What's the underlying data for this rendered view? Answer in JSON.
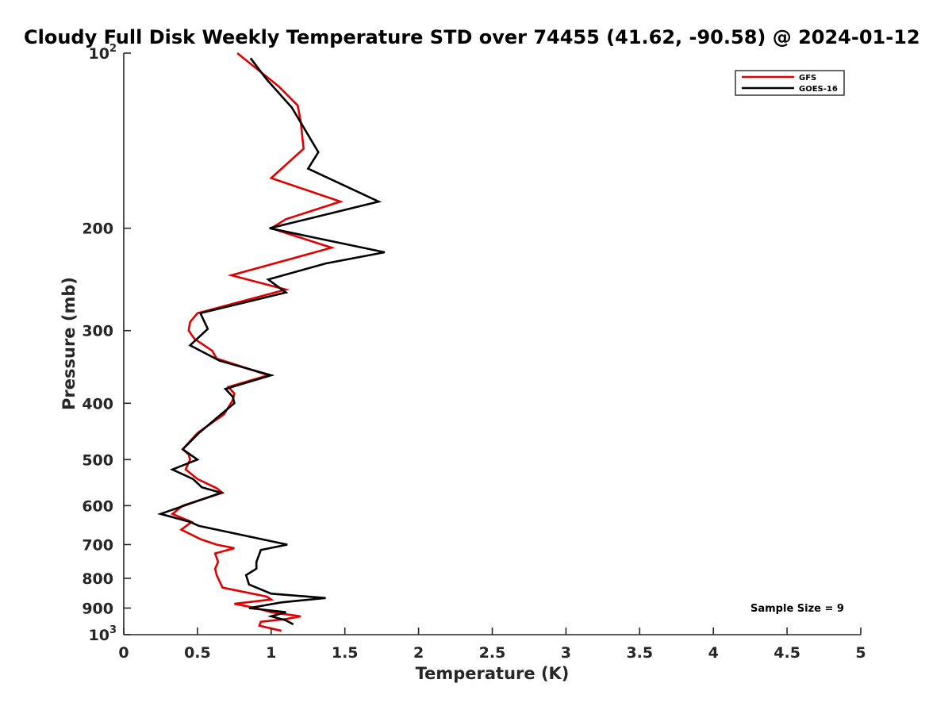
{
  "chart_data": {
    "type": "line",
    "title": "Cloudy Full Disk Weekly Temperature STD over 74455 (41.62, -90.58) @ 2024-01-12",
    "xlabel": "Temperature (K)",
    "ylabel": "Pressure (mb)",
    "xlim": [
      0,
      5
    ],
    "ylim": [
      100,
      1000
    ],
    "y_scale": "log",
    "y_reversed": true,
    "x_ticks": [
      {
        "value": 0,
        "label": "0"
      },
      {
        "value": 0.5,
        "label": "0.5"
      },
      {
        "value": 1,
        "label": "1"
      },
      {
        "value": 1.5,
        "label": "1.5"
      },
      {
        "value": 2,
        "label": "2"
      },
      {
        "value": 2.5,
        "label": "2.5"
      },
      {
        "value": 3,
        "label": "3"
      },
      {
        "value": 3.5,
        "label": "3.5"
      },
      {
        "value": 4,
        "label": "4"
      },
      {
        "value": 4.5,
        "label": "4.5"
      },
      {
        "value": 5,
        "label": "5"
      }
    ],
    "y_ticks": [
      {
        "value": 100,
        "base": "10",
        "exp": "2"
      },
      {
        "value": 200,
        "base": "200",
        "exp": ""
      },
      {
        "value": 300,
        "base": "300",
        "exp": ""
      },
      {
        "value": 400,
        "base": "400",
        "exp": ""
      },
      {
        "value": 500,
        "base": "500",
        "exp": ""
      },
      {
        "value": 600,
        "base": "600",
        "exp": ""
      },
      {
        "value": 700,
        "base": "700",
        "exp": ""
      },
      {
        "value": 800,
        "base": "800",
        "exp": ""
      },
      {
        "value": 900,
        "base": "900",
        "exp": ""
      },
      {
        "value": 1000,
        "base": "10",
        "exp": "3"
      }
    ],
    "grid": false,
    "legend_position": "top-right",
    "annotation": "Sample Size = 9",
    "series": [
      {
        "name": "GFS",
        "color": "#e00000",
        "points": [
          [
            0.77,
            100
          ],
          [
            1.05,
            114
          ],
          [
            1.18,
            123
          ],
          [
            1.2,
            131
          ],
          [
            1.22,
            146
          ],
          [
            1.0,
            164
          ],
          [
            1.47,
            180
          ],
          [
            1.1,
            193
          ],
          [
            1.0,
            200
          ],
          [
            1.41,
            216
          ],
          [
            0.73,
            241
          ],
          [
            1.1,
            255
          ],
          [
            0.5,
            280
          ],
          [
            0.45,
            290
          ],
          [
            0.44,
            300
          ],
          [
            0.48,
            310
          ],
          [
            0.6,
            325
          ],
          [
            0.63,
            335
          ],
          [
            0.98,
            358
          ],
          [
            0.71,
            375
          ],
          [
            0.75,
            385
          ],
          [
            0.74,
            395
          ],
          [
            0.68,
            418
          ],
          [
            0.5,
            450
          ],
          [
            0.4,
            480
          ],
          [
            0.44,
            490
          ],
          [
            0.45,
            500
          ],
          [
            0.42,
            520
          ],
          [
            0.5,
            540
          ],
          [
            0.63,
            560
          ],
          [
            0.67,
            570
          ],
          [
            0.4,
            600
          ],
          [
            0.33,
            620
          ],
          [
            0.46,
            640
          ],
          [
            0.39,
            660
          ],
          [
            0.52,
            685
          ],
          [
            0.63,
            700
          ],
          [
            0.75,
            710
          ],
          [
            0.62,
            725
          ],
          [
            0.64,
            750
          ],
          [
            0.62,
            770
          ],
          [
            0.63,
            790
          ],
          [
            0.67,
            830
          ],
          [
            0.97,
            860
          ],
          [
            1.0,
            870
          ],
          [
            0.75,
            885
          ],
          [
            0.9,
            900
          ],
          [
            1.0,
            915
          ],
          [
            1.2,
            930
          ],
          [
            1.1,
            940
          ],
          [
            0.93,
            950
          ],
          [
            0.92,
            965
          ],
          [
            1.07,
            985
          ]
        ]
      },
      {
        "name": "GOES-16",
        "color": "#000000",
        "points": [
          [
            0.86,
            102
          ],
          [
            0.97,
            111
          ],
          [
            1.14,
            124
          ],
          [
            1.32,
            148
          ],
          [
            1.25,
            158
          ],
          [
            1.73,
            180
          ],
          [
            0.99,
            200
          ],
          [
            1.77,
            220
          ],
          [
            1.37,
            230
          ],
          [
            0.98,
            245
          ],
          [
            1.1,
            258
          ],
          [
            0.52,
            280
          ],
          [
            0.57,
            298
          ],
          [
            0.45,
            318
          ],
          [
            0.65,
            338
          ],
          [
            1.0,
            358
          ],
          [
            0.69,
            378
          ],
          [
            0.74,
            390
          ],
          [
            0.75,
            400
          ],
          [
            0.65,
            420
          ],
          [
            0.51,
            450
          ],
          [
            0.4,
            480
          ],
          [
            0.5,
            500
          ],
          [
            0.33,
            520
          ],
          [
            0.47,
            540
          ],
          [
            0.53,
            558
          ],
          [
            0.66,
            570
          ],
          [
            0.25,
            620
          ],
          [
            0.45,
            640
          ],
          [
            0.51,
            650
          ],
          [
            1.11,
            700
          ],
          [
            0.93,
            715
          ],
          [
            0.9,
            750
          ],
          [
            0.9,
            770
          ],
          [
            0.83,
            790
          ],
          [
            0.85,
            820
          ],
          [
            1.0,
            850
          ],
          [
            1.37,
            865
          ],
          [
            1.07,
            880
          ],
          [
            0.85,
            900
          ],
          [
            1.1,
            915
          ],
          [
            1.0,
            930
          ],
          [
            1.1,
            945
          ],
          [
            1.15,
            960
          ]
        ]
      }
    ]
  }
}
